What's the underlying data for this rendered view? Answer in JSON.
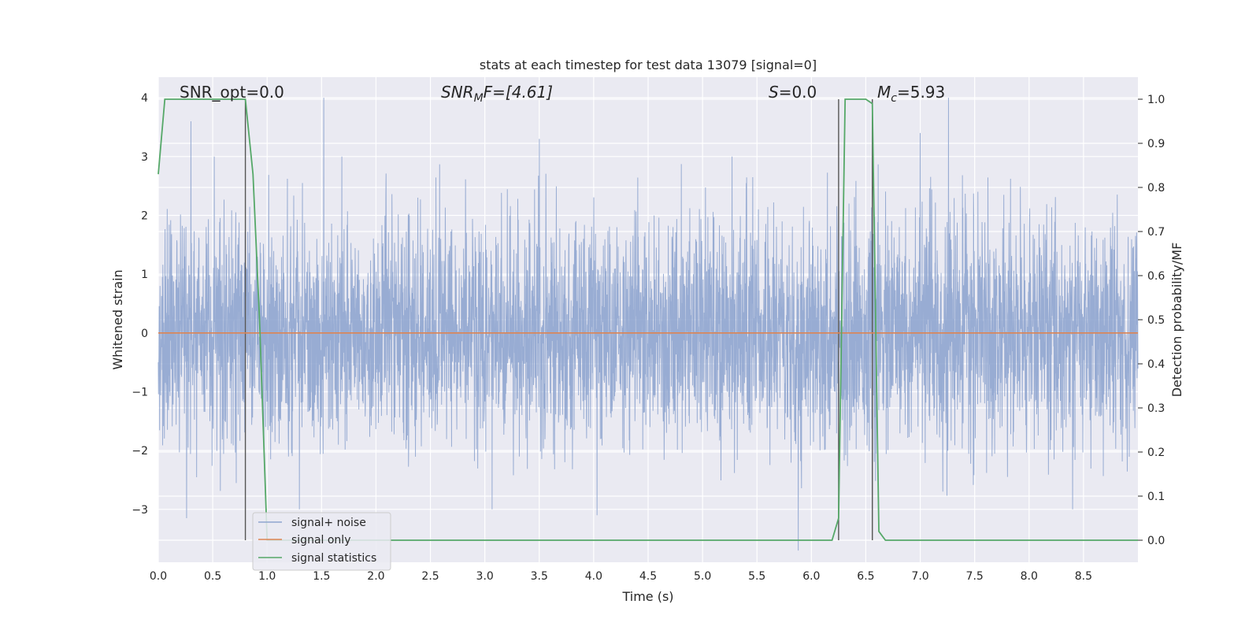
{
  "chart_data": {
    "type": "line",
    "title": "stats at each timestep for test data 13079 [signal=0]",
    "xlabel": "Time (s)",
    "ylabel": "Whitened strain",
    "ylabel_right": "Detection probability/MF",
    "xlim": [
      0.0,
      9.0
    ],
    "ylim": [
      -3.9,
      4.35
    ],
    "ylim_right": [
      -0.05,
      1.05
    ],
    "x_ticks": [
      "0.0",
      "0.5",
      "1.0",
      "1.5",
      "2.0",
      "2.5",
      "3.0",
      "3.5",
      "4.0",
      "4.5",
      "5.0",
      "5.5",
      "6.0",
      "6.5",
      "7.0",
      "7.5",
      "8.0",
      "8.5"
    ],
    "y_ticks": [
      "−3",
      "−2",
      "−1",
      "0",
      "1",
      "2",
      "3",
      "4"
    ],
    "y_ticks_right": [
      "0.0",
      "0.1",
      "0.2",
      "0.3",
      "0.4",
      "0.5",
      "0.6",
      "0.7",
      "0.8",
      "0.9",
      "1.0"
    ],
    "grid": true,
    "legend_position": "lower-left",
    "annotations": {
      "snr_opt": "SNR_opt=0.0",
      "snr_mf_main": "SNR",
      "snr_mf_sub": "M",
      "snr_mf_rest": "F=[4.61]",
      "s_main": "S",
      "s_rest": "=0.0",
      "mc_main": "M",
      "mc_sub": "c",
      "mc_rest": "=5.93"
    },
    "vertical_lines_x": [
      0.8,
      6.25,
      6.56
    ],
    "series": [
      {
        "name": "signal+ noise",
        "color": "#8fa5cf",
        "description_values": "whitened noise, roughly Gaussian, amplitude mostly within ±2, peaks to 4.0 and -3.7",
        "peaks": [
          {
            "x": 0.3,
            "y": 3.6
          },
          {
            "x": 1.52,
            "y": 4.0
          },
          {
            "x": 3.5,
            "y": 3.3
          },
          {
            "x": 7.26,
            "y": 4.0
          },
          {
            "x": 7.0,
            "y": 3.4
          },
          {
            "x": 0.26,
            "y": -3.15
          },
          {
            "x": 4.03,
            "y": -3.1
          },
          {
            "x": 5.88,
            "y": -3.7
          },
          {
            "x": 8.4,
            "y": -3.0
          }
        ]
      },
      {
        "name": "signal only",
        "color": "#dd8452",
        "x": [
          0.0,
          9.0
        ],
        "y": [
          0.0,
          0.0
        ]
      },
      {
        "name": "signal statistics",
        "color": "#55a868",
        "axis": "right",
        "x": [
          0.0,
          0.06,
          0.12,
          0.8,
          0.87,
          0.93,
          1.0,
          6.19,
          6.25,
          6.31,
          6.5,
          6.56,
          6.62,
          6.68,
          9.0
        ],
        "y": [
          0.83,
          1.0,
          1.0,
          1.0,
          0.83,
          0.5,
          0.0,
          0.0,
          0.05,
          1.0,
          1.0,
          0.99,
          0.02,
          0.0,
          0.0
        ]
      }
    ]
  }
}
